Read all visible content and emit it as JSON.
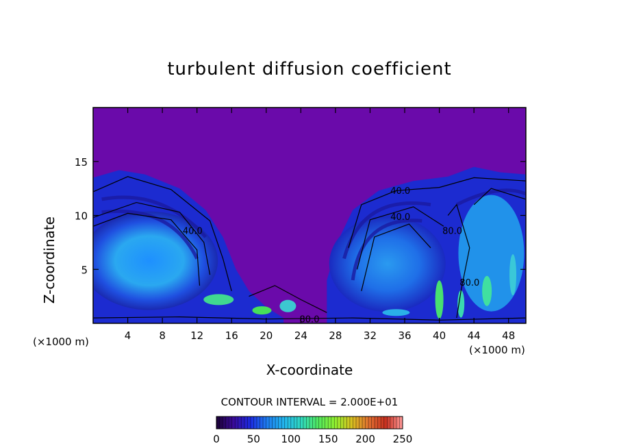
{
  "chart_data": {
    "type": "heatmap",
    "title": "turbulent diffusion coefficient",
    "xlabel": "X-coordinate",
    "ylabel": "Z-coordinate",
    "x_unit": "(×1000 m)",
    "y_unit": "(×1000 m)",
    "xlim": [
      0,
      50
    ],
    "ylim": [
      0,
      20
    ],
    "x_ticks": [
      4,
      8,
      12,
      16,
      20,
      24,
      28,
      32,
      36,
      40,
      44,
      48
    ],
    "y_ticks": [
      5,
      10,
      15
    ],
    "contour_interval_text": "CONTOUR INTERVAL = 2.000E+01",
    "contour_labels": [
      {
        "text": "40.0",
        "x": 35.5,
        "z": 12.0
      },
      {
        "text": "40.0",
        "x": 35.5,
        "z": 9.6
      },
      {
        "text": "40.0",
        "x": 11.5,
        "z": 8.3
      },
      {
        "text": "80.0",
        "x": 41.5,
        "z": 8.3
      },
      {
        "text": "80.0",
        "x": 43.5,
        "z": 3.5
      },
      {
        "text": "80.0",
        "x": 25.0,
        "z": 0.1
      }
    ],
    "colorbar": {
      "min": 0,
      "max": 250,
      "ticks": [
        0,
        50,
        100,
        150,
        200,
        250
      ],
      "colors": [
        "#1a0033",
        "#3a0a9a",
        "#1c2ae0",
        "#1e7ef0",
        "#22b6ee",
        "#30d8c0",
        "#50e860",
        "#90f030",
        "#d8c020",
        "#e07030",
        "#c83020",
        "#ff9a9a"
      ]
    },
    "background_color": "#6a0aaa"
  }
}
